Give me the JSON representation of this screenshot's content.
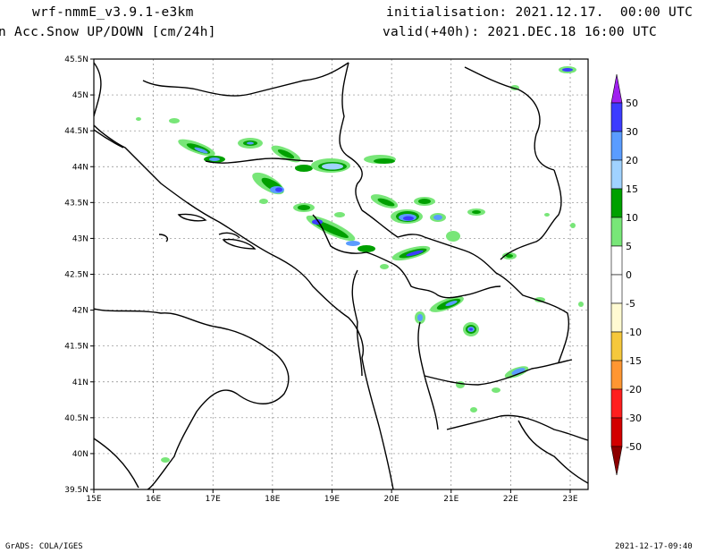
{
  "header": {
    "model": "wrf-nmmE_v3.9.1-e3km",
    "variable": "n Acc.Snow UP/DOWN [cm/24h]",
    "init": "initialisation: 2021.12.17.  00:00 UTC",
    "valid": "valid(+40h): 2021.DEC.18 16:00 UTC"
  },
  "map": {
    "lat_labels": [
      "45.5N",
      "45N",
      "44.5N",
      "44N",
      "43.5N",
      "43N",
      "42.5N",
      "42N",
      "41.5N",
      "41N",
      "40.5N",
      "40N",
      "39.5N"
    ],
    "lon_labels": [
      "15E",
      "16E",
      "17E",
      "18E",
      "19E",
      "20E",
      "21E",
      "22E",
      "23E"
    ],
    "lon_range": [
      15,
      23.3
    ],
    "lat_range": [
      39.5,
      45.5
    ],
    "grid": true
  },
  "legend": {
    "labels": [
      "50",
      "30",
      "20",
      "15",
      "10",
      "5",
      "0",
      "-5",
      "-10",
      "-15",
      "-20",
      "-30",
      "-50"
    ],
    "colors": [
      "#3c3cff",
      "#5a9cff",
      "#a0d2ff",
      "#00a000",
      "#78e678",
      "#ffffff",
      "#ffffff",
      "#fffad2",
      "#f5c83c",
      "#ff9632",
      "#ff1e1e",
      "#d20000",
      "#a00000"
    ],
    "top_arrow_color": "#a020f0",
    "bottom_arrow_color": "#8c0000"
  },
  "footer": {
    "left": "GrADS: COLA/IGES",
    "right": "2021-12-17-09:40"
  }
}
